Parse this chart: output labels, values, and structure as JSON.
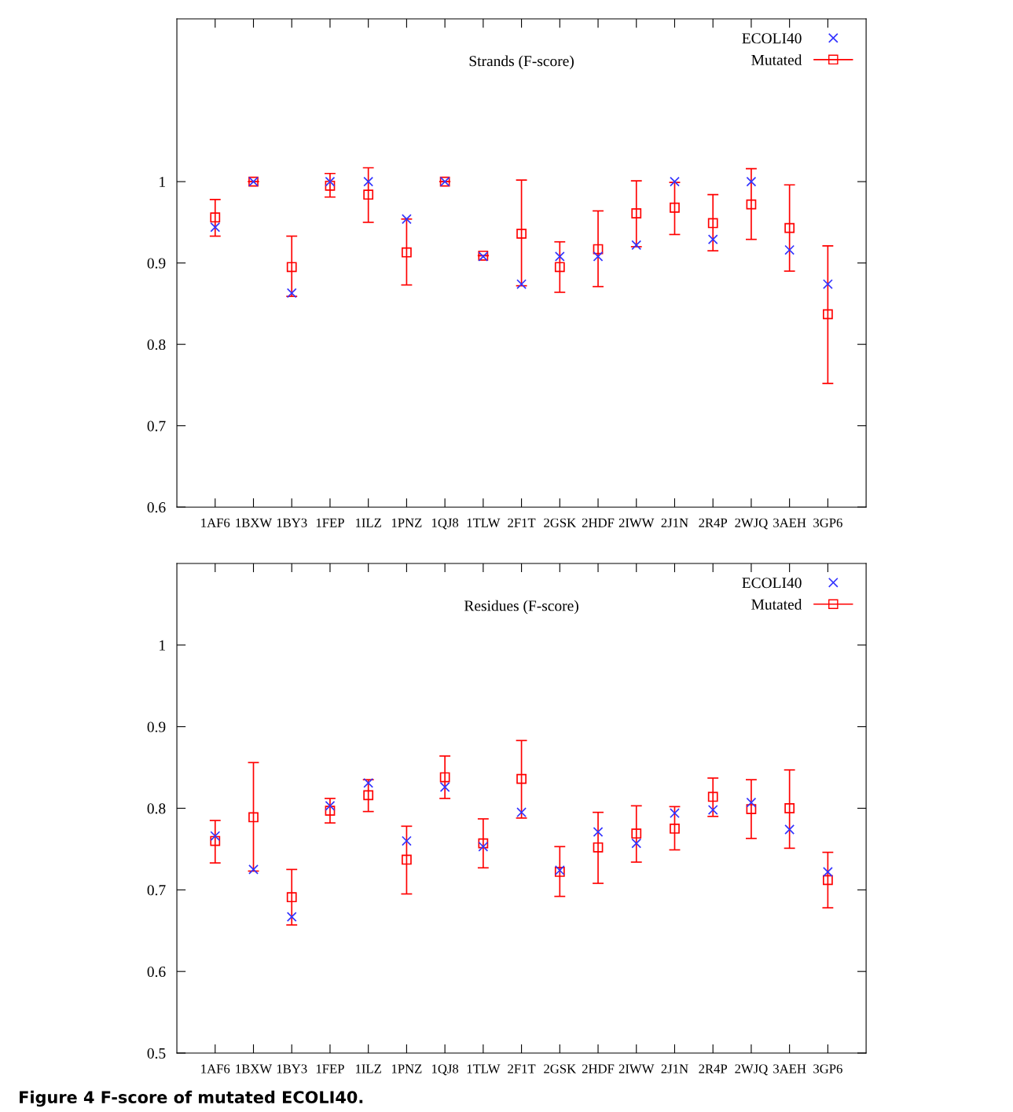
{
  "chart_data": [
    {
      "type": "scatter",
      "title": "Strands (F-score)",
      "categories": [
        "1AF6",
        "1BXW",
        "1BY3",
        "1FEP",
        "1ILZ",
        "1PNZ",
        "1QJ8",
        "1TLW",
        "2F1T",
        "2GSK",
        "2HDF",
        "2IWW",
        "2J1N",
        "2R4P",
        "2WJQ",
        "3AEH",
        "3GP6"
      ],
      "ylim": [
        0.6,
        1.2
      ],
      "yticks": [
        0.6,
        0.7,
        0.8,
        0.9,
        1
      ],
      "grid": false,
      "legend": "top right",
      "series": [
        {
          "name": "ECOLI40",
          "color": "#3333ff",
          "marker": "cross",
          "values": [
            0.944,
            1.0,
            0.863,
            1.0,
            1.0,
            0.954,
            1.0,
            0.908,
            0.874,
            0.908,
            0.908,
            0.922,
            1.0,
            0.929,
            1.0,
            0.916,
            0.874
          ]
        },
        {
          "name": "Mutated",
          "color": "#ff0000",
          "marker": "square",
          "values": [
            0.956,
            1.0,
            0.895,
            0.995,
            0.984,
            0.913,
            1.0,
            0.909,
            0.936,
            0.895,
            0.917,
            0.961,
            0.968,
            0.949,
            0.972,
            0.943,
            0.837
          ],
          "errors": [
            [
              0.933,
              0.978
            ],
            null,
            [
              0.859,
              0.933
            ],
            [
              0.981,
              1.01
            ],
            [
              0.95,
              1.017
            ],
            [
              0.873,
              0.954
            ],
            null,
            null,
            [
              0.872,
              1.002
            ],
            [
              0.864,
              0.926
            ],
            [
              0.871,
              0.964
            ],
            [
              0.92,
              1.001
            ],
            [
              0.935,
              0.999
            ],
            [
              0.915,
              0.984
            ],
            [
              0.929,
              1.016
            ],
            [
              0.89,
              0.996
            ],
            [
              0.752,
              0.921
            ]
          ]
        }
      ]
    },
    {
      "type": "scatter",
      "title": "Residues (F-score)",
      "categories": [
        "1AF6",
        "1BXW",
        "1BY3",
        "1FEP",
        "1ILZ",
        "1PNZ",
        "1QJ8",
        "1TLW",
        "2F1T",
        "2GSK",
        "2HDF",
        "2IWW",
        "2J1N",
        "2R4P",
        "2WJQ",
        "3AEH",
        "3GP6"
      ],
      "ylim": [
        0.5,
        1.1
      ],
      "yticks": [
        0.5,
        0.6,
        0.7,
        0.8,
        0.9,
        1
      ],
      "grid": false,
      "legend": "top right",
      "annotations": [
        "Figure 4 F-score of mutated ECOLI40."
      ],
      "series": [
        {
          "name": "ECOLI40",
          "color": "#3333ff",
          "marker": "cross",
          "values": [
            0.766,
            0.725,
            0.667,
            0.803,
            0.831,
            0.76,
            0.826,
            0.753,
            0.795,
            0.724,
            0.771,
            0.757,
            0.794,
            0.798,
            0.807,
            0.774,
            0.722
          ]
        },
        {
          "name": "Mutated",
          "color": "#ff0000",
          "marker": "square",
          "values": [
            0.76,
            0.789,
            0.691,
            0.797,
            0.816,
            0.737,
            0.838,
            0.757,
            0.836,
            0.722,
            0.752,
            0.769,
            0.775,
            0.814,
            0.799,
            0.8,
            0.712
          ],
          "errors": [
            [
              0.733,
              0.785
            ],
            [
              0.723,
              0.856
            ],
            [
              0.657,
              0.725
            ],
            [
              0.782,
              0.812
            ],
            [
              0.796,
              0.835
            ],
            [
              0.695,
              0.778
            ],
            [
              0.812,
              0.864
            ],
            [
              0.727,
              0.787
            ],
            [
              0.788,
              0.883
            ],
            [
              0.692,
              0.753
            ],
            [
              0.708,
              0.795
            ],
            [
              0.734,
              0.803
            ],
            [
              0.749,
              0.802
            ],
            [
              0.79,
              0.837
            ],
            [
              0.763,
              0.835
            ],
            [
              0.751,
              0.847
            ],
            [
              0.678,
              0.746
            ]
          ]
        }
      ]
    }
  ]
}
